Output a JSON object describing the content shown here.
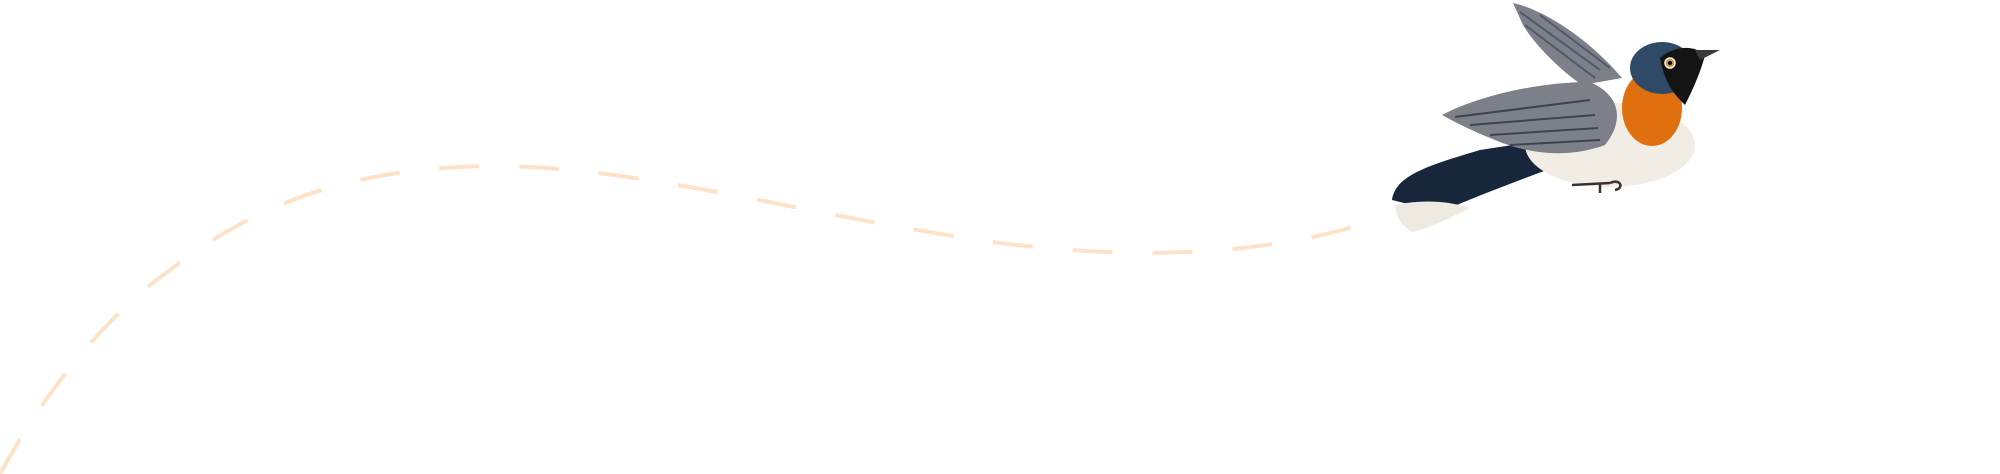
{
  "illustration": {
    "subject": "bird-in-flight",
    "colors": {
      "background": "#ffffff",
      "flight_path": "#fde2c8",
      "bird_head": "#2f4a66",
      "bird_mask": "#141414",
      "bird_throat": "#e0700f",
      "bird_belly": "#f2ede4",
      "bird_wing": "#7d8088",
      "bird_tail": "#17263a",
      "bird_tail_tips": "#eeeae2"
    }
  }
}
